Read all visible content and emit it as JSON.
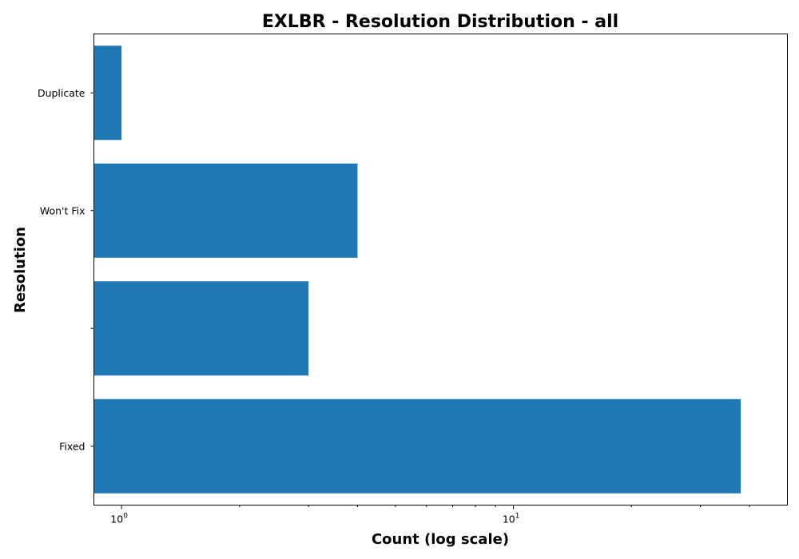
{
  "chart_data": {
    "type": "bar",
    "orientation": "horizontal",
    "title": "EXLBR - Resolution Distribution - all",
    "xlabel": "Count (log scale)",
    "ylabel": "Resolution",
    "xscale": "log",
    "xlim": [
      0.85,
      50
    ],
    "categories": [
      "Fixed",
      "",
      "Won't Fix",
      "Duplicate"
    ],
    "values": [
      38,
      3,
      4,
      1
    ],
    "bar_color": "#1f77b4",
    "x_major_ticks": [
      {
        "value": 1,
        "base": "10",
        "exponent": "0"
      },
      {
        "value": 10,
        "base": "10",
        "exponent": "1"
      }
    ],
    "x_minor_ticks": [
      2,
      3,
      4,
      5,
      6,
      7,
      8,
      9,
      20,
      30,
      40
    ]
  }
}
